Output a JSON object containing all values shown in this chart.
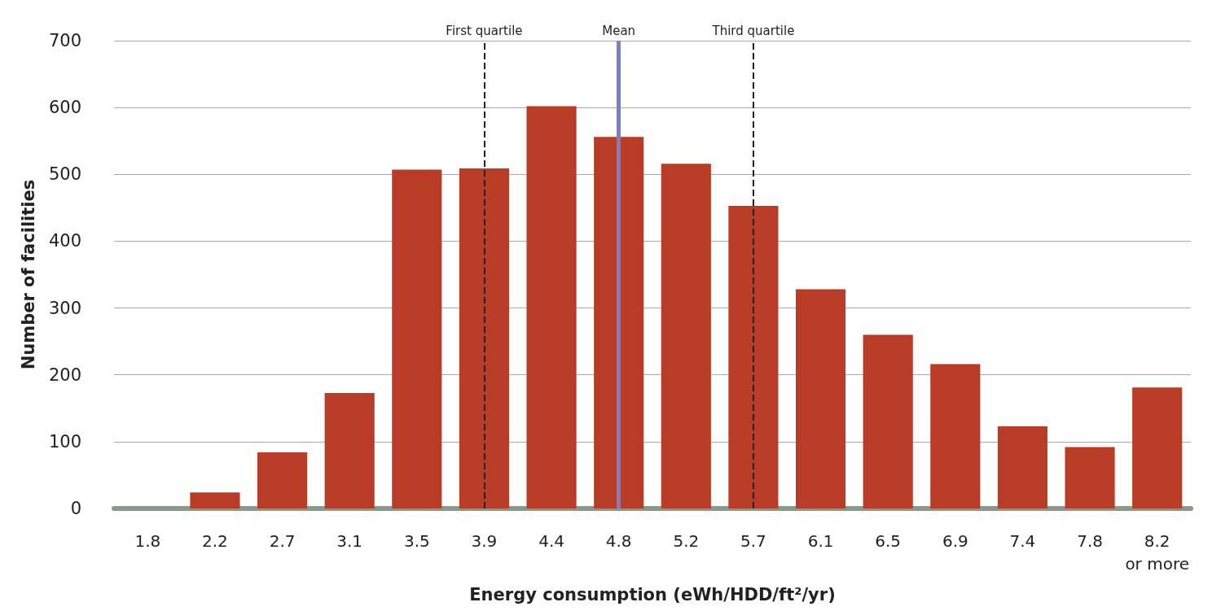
{
  "chart_data": {
    "type": "bar",
    "xlabel": "Energy consumption (eWh/HDD/ft²/yr)",
    "ylabel": "Number of facilities",
    "categories": [
      "1.8",
      "2.2",
      "2.7",
      "3.1",
      "3.5",
      "3.9",
      "4.4",
      "4.8",
      "5.2",
      "5.7",
      "6.1",
      "6.5",
      "6.9",
      "7.4",
      "7.8",
      "8.2\nor more"
    ],
    "values": [
      0,
      24,
      84,
      173,
      507,
      509,
      602,
      556,
      516,
      453,
      328,
      260,
      216,
      123,
      92,
      181
    ],
    "color": "#b83c26",
    "ylim": [
      0,
      700
    ],
    "yticks": [
      0,
      100,
      200,
      300,
      400,
      500,
      600,
      700
    ],
    "grid": "y",
    "ref_lines": [
      {
        "axis": "x",
        "value": "3.9",
        "label": "First quartile",
        "color": "#222222",
        "line_style": "dashed"
      },
      {
        "axis": "x",
        "value": "4.8",
        "label": "Mean",
        "color": "#7b7fc4",
        "line_style": "solid"
      },
      {
        "axis": "x",
        "value": "5.7",
        "label": "Third quartile",
        "color": "#222222",
        "line_style": "dashed"
      }
    ]
  }
}
